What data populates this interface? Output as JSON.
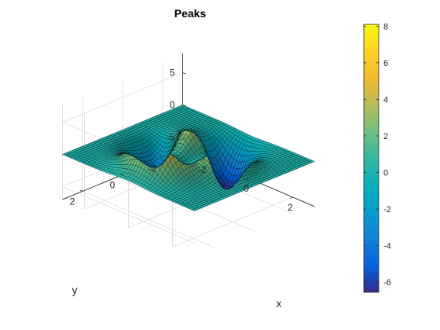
{
  "chart_data": {
    "type": "surface",
    "title": "Peaks",
    "function": "3*(1-x)^2*exp(-x^2-(y+1)^2) - 10*(x/5-x^3-y^5)*exp(-x^2-y^2) - 1/3*exp(-(x+1)^2-y^2)",
    "xlabel": "x",
    "ylabel": "y",
    "zlabel": "",
    "xlim": [
      -3,
      3
    ],
    "ylim": [
      -3,
      3
    ],
    "zlim": [
      -7,
      8
    ],
    "x_ticks": [
      "-2",
      "0",
      "2"
    ],
    "y_ticks": [
      "-2",
      "0",
      "2"
    ],
    "z_ticks": [
      "-5",
      "0",
      "5"
    ],
    "grid_points": 49,
    "colormap": "parula",
    "clim": [
      -6.55,
      8.1
    ],
    "colorbar": {
      "ticks": [
        "8",
        "6",
        "4",
        "2",
        "0",
        "-2",
        "-4",
        "-6"
      ],
      "tick_values": [
        8,
        6,
        4,
        2,
        0,
        -2,
        -4,
        -6
      ],
      "position": "right"
    },
    "grid": true,
    "edge_color": "#000000",
    "view": {
      "azimuth": -37.5,
      "elevation": 30
    }
  }
}
